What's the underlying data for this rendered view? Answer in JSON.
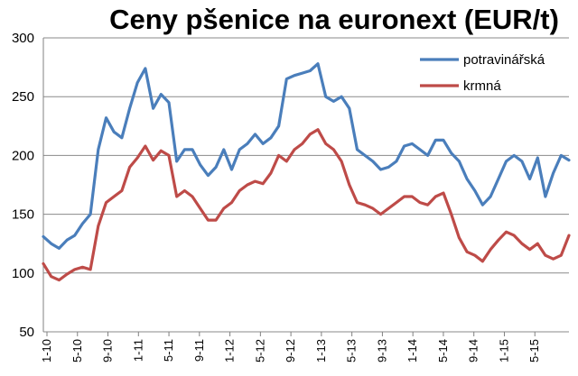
{
  "chart_data": {
    "type": "line",
    "title": "Ceny pšenice na euronext (EUR/t)",
    "xlabel": "",
    "ylabel": "",
    "ylim": [
      50,
      300
    ],
    "yticks": [
      50,
      100,
      150,
      200,
      250,
      300
    ],
    "grid": true,
    "legend_position": "top-right",
    "x_tick_labels": [
      "1-10",
      "5-10",
      "9-10",
      "1-11",
      "5-11",
      "9-11",
      "1-12",
      "5-12",
      "9-12",
      "1-13",
      "5-13",
      "9-13",
      "1-14",
      "5-14",
      "9-14",
      "1-15",
      "5-15"
    ],
    "x_range": [
      0,
      67
    ],
    "series": [
      {
        "name": "potravinářská",
        "color": "#4a7ebb",
        "x": [
          0,
          1,
          2,
          3,
          4,
          5,
          6,
          7,
          8,
          9,
          10,
          11,
          12,
          13,
          14,
          15,
          16,
          17,
          18,
          19,
          20,
          21,
          22,
          23,
          24,
          25,
          26,
          27,
          28,
          29,
          30,
          31,
          32,
          33,
          34,
          35,
          36,
          37,
          38,
          39,
          40,
          41,
          42,
          43,
          44,
          45,
          46,
          47,
          48,
          49,
          50,
          51,
          52,
          53,
          54,
          55,
          56,
          57,
          58,
          59,
          60,
          61,
          62,
          63,
          64,
          65,
          66,
          67
        ],
        "values": [
          131,
          125,
          121,
          128,
          132,
          142,
          150,
          205,
          232,
          220,
          215,
          240,
          262,
          274,
          240,
          252,
          245,
          195,
          205,
          205,
          192,
          183,
          190,
          205,
          188,
          205,
          210,
          218,
          210,
          215,
          225,
          265,
          268,
          270,
          272,
          278,
          250,
          246,
          250,
          240,
          205,
          200,
          195,
          188,
          190,
          195,
          208,
          210,
          205,
          200,
          213,
          213,
          202,
          195,
          180,
          170,
          158,
          165,
          180,
          195,
          200,
          195,
          180,
          198,
          165,
          185,
          200,
          196
        ]
      },
      {
        "name": "krmná",
        "color": "#be4b48",
        "x": [
          0,
          1,
          2,
          3,
          4,
          5,
          6,
          7,
          8,
          9,
          10,
          11,
          12,
          13,
          14,
          15,
          16,
          17,
          18,
          19,
          20,
          21,
          22,
          23,
          24,
          25,
          26,
          27,
          28,
          29,
          30,
          31,
          32,
          33,
          34,
          35,
          36,
          37,
          38,
          39,
          40,
          41,
          42,
          43,
          44,
          45,
          46,
          47,
          48,
          49,
          50,
          51,
          52,
          53,
          54,
          55,
          56,
          57,
          58,
          59,
          60,
          61,
          62,
          63,
          64,
          65,
          66,
          67
        ],
        "values": [
          108,
          97,
          94,
          99,
          103,
          105,
          103,
          140,
          160,
          165,
          170,
          190,
          198,
          208,
          196,
          204,
          200,
          165,
          170,
          165,
          155,
          145,
          145,
          155,
          160,
          170,
          175,
          178,
          176,
          185,
          200,
          195,
          205,
          210,
          218,
          222,
          210,
          205,
          195,
          175,
          160,
          158,
          155,
          150,
          155,
          160,
          165,
          165,
          160,
          158,
          165,
          168,
          150,
          130,
          118,
          115,
          110,
          120,
          128,
          135,
          132,
          125,
          120,
          125,
          115,
          112,
          115,
          132
        ]
      }
    ]
  }
}
